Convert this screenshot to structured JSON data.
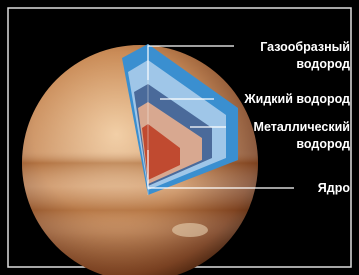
{
  "labels": [
    {
      "lines": [
        "Газообразный",
        "водород"
      ]
    },
    {
      "lines": [
        "Жидкий водород"
      ]
    },
    {
      "lines": [
        "Металлический",
        "водород"
      ]
    },
    {
      "lines": [
        "Ядро"
      ]
    }
  ]
}
